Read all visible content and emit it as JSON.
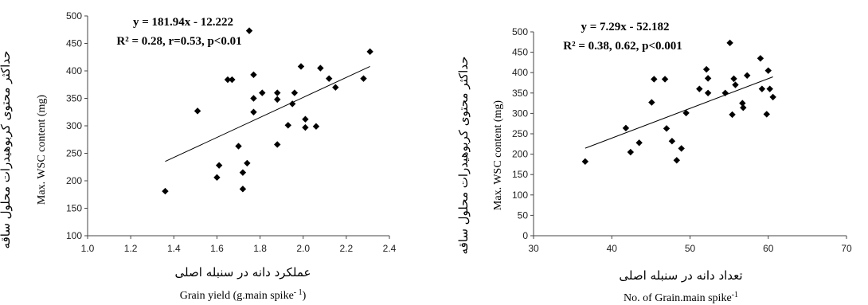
{
  "chart_data": [
    {
      "type": "scatter",
      "title": "",
      "equation": "y = 181.94x - 12.222",
      "stats": "R² = 0.28, r=0.53, p<0.01",
      "xlabel_fa": "عملکرد دانه در سنبله اصلی",
      "xlabel_en": "Grain yield (g.main spike",
      "xlabel_sup": "- 1",
      "xlabel_tail": ")",
      "ylabel_fa": "حداکثر محتوی کربوهیدرات محلول ساقه",
      "ylabel_en": "Max.  WSC content  (mg)",
      "xlim": [
        1.0,
        2.4
      ],
      "ylim": [
        100,
        500
      ],
      "xticks": [
        "1.0",
        "1.2",
        "1.4",
        "1.6",
        "1.8",
        "2.0",
        "2.2",
        "2.4"
      ],
      "yticks": [
        "100",
        "150",
        "200",
        "250",
        "300",
        "350",
        "400",
        "450",
        "500"
      ],
      "trend": {
        "slope": 181.94,
        "intercept": -12.222,
        "x_range": [
          1.36,
          2.31
        ]
      },
      "points": [
        [
          1.36,
          181
        ],
        [
          1.51,
          327
        ],
        [
          1.6,
          206
        ],
        [
          1.61,
          228
        ],
        [
          1.65,
          384
        ],
        [
          1.67,
          384
        ],
        [
          1.7,
          263
        ],
        [
          1.72,
          215
        ],
        [
          1.72,
          185
        ],
        [
          1.74,
          232
        ],
        [
          1.75,
          473
        ],
        [
          1.77,
          393
        ],
        [
          1.77,
          350
        ],
        [
          1.77,
          325
        ],
        [
          1.81,
          360
        ],
        [
          1.88,
          360
        ],
        [
          1.88,
          348
        ],
        [
          1.88,
          266
        ],
        [
          1.93,
          301
        ],
        [
          1.95,
          340
        ],
        [
          1.96,
          360
        ],
        [
          1.99,
          408
        ],
        [
          2.01,
          312
        ],
        [
          2.01,
          297
        ],
        [
          2.06,
          299
        ],
        [
          2.08,
          405
        ],
        [
          2.12,
          386
        ],
        [
          2.15,
          370
        ],
        [
          2.28,
          386
        ],
        [
          2.31,
          435
        ]
      ]
    },
    {
      "type": "scatter",
      "title": "",
      "equation": "y = 7.29x - 52.182",
      "stats": "R² = 0.38, 0.62, p<0.001",
      "xlabel_fa": "تعداد دانه در سنبله اصلی",
      "xlabel_en": "No. of Grain.main spike",
      "xlabel_sup": "-1",
      "xlabel_tail": "",
      "ylabel_fa": "حداکثر محتوی کربوهیدرات محلول ساقه",
      "ylabel_en": "Max.  WSC content  (mg)",
      "xlim": [
        30,
        70
      ],
      "ylim": [
        0,
        500
      ],
      "xticks": [
        "30",
        "40",
        "50",
        "60",
        "70"
      ],
      "yticks": [
        "0",
        "50",
        "100",
        "150",
        "200",
        "250",
        "300",
        "350",
        "400",
        "450",
        "500"
      ],
      "trend": {
        "slope": 7.29,
        "intercept": -52.182,
        "x_range": [
          36.6,
          60.6
        ]
      },
      "points": [
        [
          36.6,
          182
        ],
        [
          41.8,
          264
        ],
        [
          42.4,
          205
        ],
        [
          43.5,
          228
        ],
        [
          45.1,
          327
        ],
        [
          45.4,
          384
        ],
        [
          46.8,
          384
        ],
        [
          47.0,
          263
        ],
        [
          47.7,
          232
        ],
        [
          48.3,
          185
        ],
        [
          48.9,
          214
        ],
        [
          49.5,
          301
        ],
        [
          51.2,
          360
        ],
        [
          52.1,
          408
        ],
        [
          52.3,
          386
        ],
        [
          52.3,
          350
        ],
        [
          54.5,
          350
        ],
        [
          55.1,
          473
        ],
        [
          55.4,
          297
        ],
        [
          55.6,
          385
        ],
        [
          55.8,
          370
        ],
        [
          56.7,
          325
        ],
        [
          56.8,
          314
        ],
        [
          57.3,
          393
        ],
        [
          59.0,
          435
        ],
        [
          59.2,
          360
        ],
        [
          59.8,
          298
        ],
        [
          60.0,
          405
        ],
        [
          60.2,
          360
        ],
        [
          60.6,
          340
        ]
      ]
    }
  ]
}
